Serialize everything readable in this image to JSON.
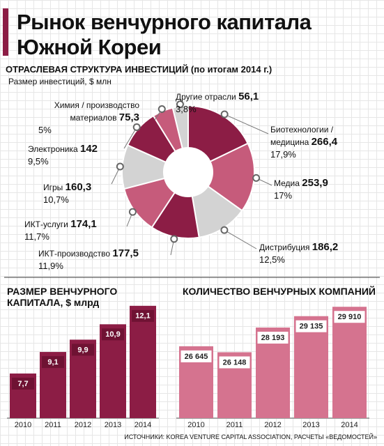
{
  "title": [
    "Рынок венчурного капитала",
    "Южной Кореи"
  ],
  "source": "ИСТОЧНИКИ: KOREA VENTURE CAPITAL ASSOCIATION, РАСЧЕТЫ «ВЕДОМОСТЕЙ»",
  "chart_data": [
    {
      "type": "pie",
      "title": "ОТРАСЛЕВАЯ СТРУКТУРА ИНВЕСТИЦИЙ (по итогам 2014 г.)",
      "subtitle": "Размер инвестиций, $ млн",
      "categories": [
        "Биотехнологии / медицина",
        "Медиа",
        "Дистрибуция",
        "ИКТ-производство",
        "ИКТ-услуги",
        "Игры",
        "Электроника",
        "Химия / производство материалов",
        "Другие отрасли"
      ],
      "values": [
        266.4,
        253.9,
        186.2,
        177.5,
        174.1,
        160.3,
        142,
        75.3,
        56.1
      ],
      "value_labels": [
        "266,4",
        "253,9",
        "186,2",
        "177,5",
        "174,1",
        "160,3",
        "142",
        "75,3",
        "56,1"
      ],
      "percent": [
        17.9,
        17,
        12.5,
        11.9,
        11.7,
        10.7,
        9.5,
        5,
        3.8
      ],
      "percent_labels": [
        "17,9%",
        "17%",
        "12,5%",
        "11,9%",
        "11,7%",
        "10,7%",
        "9,5%",
        "5%",
        "3,8%"
      ],
      "colors": [
        "#8c1d45",
        "#c65b7b",
        "#d3d3d3",
        "#8c1d45",
        "#c65b7b",
        "#d3d3d3",
        "#8c1d45",
        "#c65b7b",
        "#d3d3d3"
      ]
    },
    {
      "type": "bar",
      "title": "РАЗМЕР ВЕНЧУРНОГО КАПИТАЛА, $ млрд",
      "categories": [
        "2010",
        "2011",
        "2012",
        "2013",
        "2014"
      ],
      "values": [
        7.7,
        9.1,
        9.9,
        10.9,
        12.1
      ],
      "value_labels": [
        "7,7",
        "9,1",
        "9,9",
        "10,9",
        "12,1"
      ],
      "color": "#8c1d45",
      "ylim": [
        4.8,
        12.5
      ]
    },
    {
      "type": "bar",
      "title": "КОЛИЧЕСТВО ВЕНЧУРНЫХ КОМПАНИЙ",
      "categories": [
        "2010",
        "2011",
        "2012",
        "2013",
        "2014"
      ],
      "values": [
        26645,
        26148,
        28193,
        29135,
        29910
      ],
      "value_labels": [
        "26 645",
        "26 148",
        "28 193",
        "29 135",
        "29 910"
      ],
      "color": "#d5738f",
      "ylim": [
        20700,
        30500
      ]
    }
  ]
}
